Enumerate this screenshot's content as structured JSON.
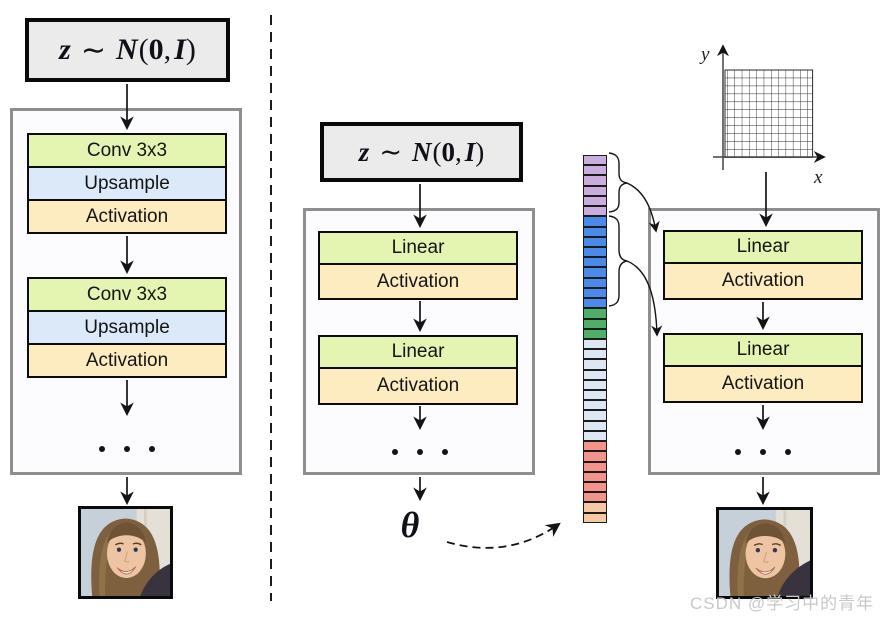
{
  "latent": {
    "z": "z",
    "sim": "∼",
    "n": "N",
    "open": "(",
    "zero": "0",
    "comma": ", ",
    "i": "I",
    "close": ")"
  },
  "theta_symbol": "θ",
  "left_panel": {
    "blocks": [
      "Conv 3x3",
      "Upsample",
      "Activation",
      "Conv 3x3",
      "Upsample",
      "Activation"
    ]
  },
  "middle_panel": {
    "blocks": [
      "Linear",
      "Activation",
      "Linear",
      "Activation"
    ]
  },
  "right_panel": {
    "blocks": [
      "Linear",
      "Activation",
      "Linear",
      "Activation"
    ]
  },
  "coordinate_axes": {
    "x_label": "x",
    "y_label": "y"
  },
  "parameter_vector": {
    "segments": [
      {
        "name": "purple",
        "color": "#c9aedd",
        "count": 6
      },
      {
        "name": "blue",
        "color": "#4a8bea",
        "count": 9
      },
      {
        "name": "green",
        "color": "#4fae68",
        "count": 3
      },
      {
        "name": "pale-blue",
        "color": "#dce7f3",
        "count": 10
      },
      {
        "name": "salmon",
        "color": "#f3948a",
        "count": 6
      },
      {
        "name": "peach",
        "color": "#f5c9a1",
        "count": 2
      }
    ]
  },
  "block_colors": {
    "conv": "#e4f5b2",
    "upsample": "#dbe9f8",
    "linear": "#e4f5b2",
    "activation": "#fdecc0"
  },
  "watermark": "CSDN @学习中的青年"
}
